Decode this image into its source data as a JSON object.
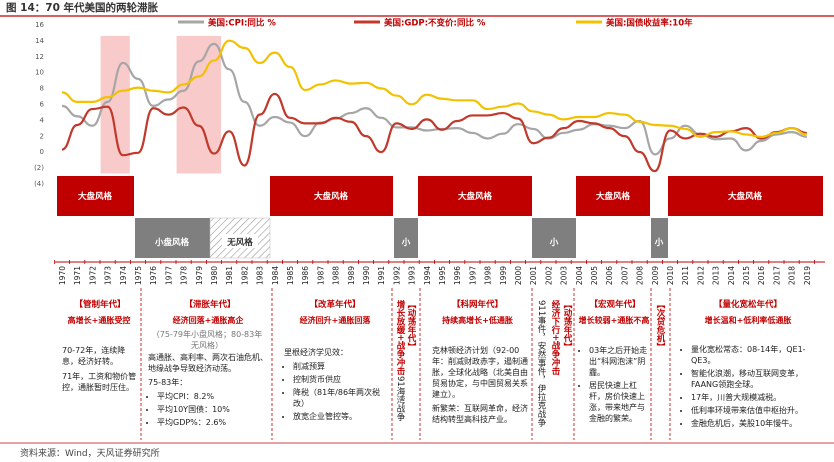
{
  "title": "图 14：70 年代美国的两轮滞胀",
  "source": "资料来源：Wind，天风证券研究所",
  "chart_data": {
    "type": "line",
    "years": [
      1970,
      1971,
      1972,
      1973,
      1974,
      1975,
      1976,
      1977,
      1978,
      1979,
      1980,
      1981,
      1982,
      1983,
      1984,
      1985,
      1986,
      1987,
      1988,
      1989,
      1990,
      1991,
      1992,
      1993,
      1994,
      1995,
      1996,
      1997,
      1998,
      1999,
      2000,
      2001,
      2002,
      2003,
      2004,
      2005,
      2006,
      2007,
      2008,
      2009,
      2010,
      2011,
      2012,
      2013,
      2014,
      2015,
      2016,
      2017,
      2018,
      2019
    ],
    "ylim": [
      -4,
      16
    ],
    "yticks": [
      "16",
      "14",
      "12",
      "10",
      "8",
      "6",
      "4",
      "2",
      "0",
      "(2)",
      "(4)"
    ],
    "series": [
      {
        "name": "美国:CPI:同比 %",
        "color": "#a6a6a6",
        "values": [
          5.7,
          4.4,
          3.2,
          6.2,
          11.1,
          9.1,
          5.7,
          6.5,
          7.6,
          11.3,
          13.5,
          10.3,
          6.2,
          3.2,
          4.3,
          3.6,
          1.9,
          3.6,
          4.1,
          4.8,
          5.4,
          4.2,
          3.0,
          3.0,
          2.6,
          2.8,
          2.9,
          2.3,
          1.6,
          2.2,
          3.4,
          2.8,
          1.6,
          2.3,
          2.7,
          3.4,
          3.2,
          2.9,
          3.8,
          -0.4,
          1.6,
          3.2,
          2.1,
          1.5,
          1.6,
          0.1,
          1.3,
          2.1,
          2.4,
          1.8
        ]
      },
      {
        "name": "美国:GDP:不变价:同比 %",
        "color": "#c0392b",
        "values": [
          0.2,
          3.3,
          5.3,
          5.6,
          -0.5,
          -0.2,
          5.4,
          4.6,
          5.5,
          3.2,
          -0.3,
          2.5,
          -1.8,
          4.6,
          7.2,
          4.2,
          3.5,
          3.5,
          4.2,
          3.7,
          1.9,
          -0.1,
          3.5,
          2.8,
          4.0,
          2.7,
          3.8,
          4.5,
          4.5,
          4.8,
          4.1,
          1.0,
          1.7,
          2.9,
          3.8,
          3.5,
          2.9,
          1.9,
          -0.1,
          -2.5,
          2.6,
          1.6,
          2.2,
          1.8,
          2.5,
          2.9,
          1.6,
          2.4,
          2.9,
          2.3
        ]
      },
      {
        "name": "美国:国债收益率:10年",
        "color": "#f2c200",
        "values": [
          7.4,
          6.2,
          6.2,
          6.8,
          7.6,
          8.0,
          7.6,
          7.4,
          8.4,
          9.4,
          11.4,
          13.9,
          13.0,
          11.1,
          12.4,
          10.6,
          7.7,
          8.4,
          8.9,
          8.5,
          8.6,
          7.9,
          7.0,
          5.9,
          7.1,
          6.6,
          6.4,
          6.4,
          5.3,
          5.6,
          6.0,
          5.0,
          4.6,
          4.0,
          4.3,
          4.3,
          4.8,
          4.6,
          3.7,
          3.3,
          3.2,
          2.8,
          1.8,
          2.4,
          2.5,
          2.1,
          1.8,
          2.3,
          2.9,
          2.1
        ]
      }
    ],
    "highlight_periods": [
      [
        "1973",
        "1974"
      ],
      [
        "1978",
        "1980"
      ]
    ]
  },
  "blocks": {
    "big_label": "大盘风格",
    "small_label": "小盘风格",
    "none_label": "无风格",
    "small_short": "小"
  },
  "eras": {
    "e1": {
      "title": "【管制年代】",
      "head": "高增长+通胀受控",
      "p1": "70-72年，连续降息，经济好转。",
      "p2": "71年，工资和物价管控，通胀暂时压住。"
    },
    "e2": {
      "title": "【滞胀年代】",
      "head": "经济回落+通胀高企",
      "note": "（75-79年小盘风格；80-83年无风格）",
      "p1": "高通胀、高利率、两次石油危机、地缘战争导致经济动荡。",
      "p2": "75-83年：",
      "b1": "平均CPI：8.2%",
      "b2": "平均10Y国债：10%",
      "b3": "平均GDP%：2.6%"
    },
    "e3": {
      "title": "【改革年代】",
      "head": "经济回升+通胀回落",
      "p1": "里根经济学见效：",
      "b1": "削减预算",
      "b2": "控制货币供应",
      "b3": "降税（81年/86年两次税改）",
      "b4": "放宽企业管控等。"
    },
    "e4": {
      "vtitle": "【动荡年代】",
      "vhead": "增长放缓+战争冲击",
      "vbody": "91海湾战争"
    },
    "e5": {
      "title": "【科网年代】",
      "head": "持续高增长+低通胀",
      "p1": "克林顿经济计划（92-00年：削减财政赤字，遏制通胀，全球化战略（北美自由贸易协定，与中国贸易关系建立）。",
      "p2": "新繁荣：互联网革命，经济结构转型高科技产业。"
    },
    "e6": {
      "vtitle": "【动荡年代】",
      "vhead": "经济下行+战争冲击",
      "vbody": "911事件，安然事件，伊拉克战争"
    },
    "e7": {
      "title": "【宏观年代】",
      "head": "增长较弱+通胀不高",
      "b1": "03年之后开始走出“科网泡沫”阴霾。",
      "b2": "居民快速上杠杆，房价快速上涨，带来地产与金融的繁荣。"
    },
    "e8": {
      "vtitle": "【次贷危机】"
    },
    "e9": {
      "title": "【量化宽松年代】",
      "head": "增长温和+低利率低通胀",
      "b1": "量化宽松常态：08-14年，QE1-QE3。",
      "b2": "智能化浪潮，移动互联网变革，FAANG领跑全球。",
      "b3": "17年，川普大规模减税。",
      "b4": "低利率环境带来估值中枢抬升。",
      "b5": "金融危机后，美股10年慢牛。"
    }
  }
}
